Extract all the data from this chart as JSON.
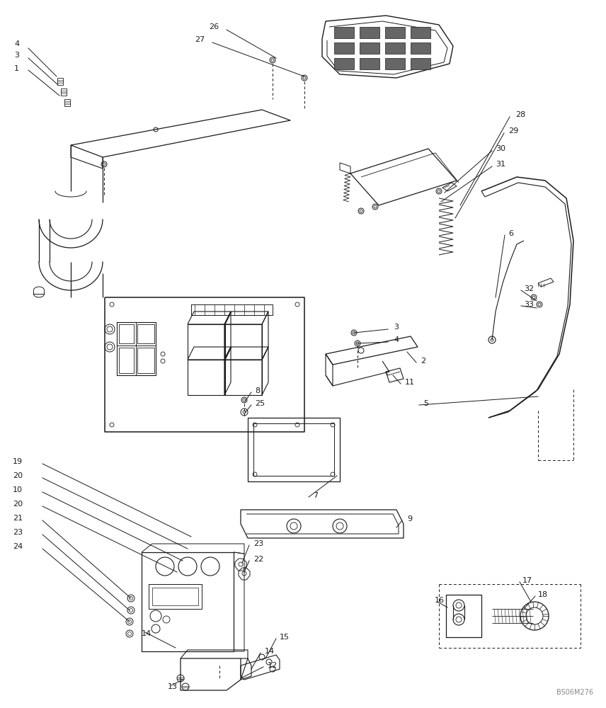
{
  "bg_color": "#ffffff",
  "lc": "#1a1a1a",
  "fs": 8.0,
  "watermark": "BS06M276",
  "fig_w": 8.56,
  "fig_h": 10.0,
  "dpi": 100
}
